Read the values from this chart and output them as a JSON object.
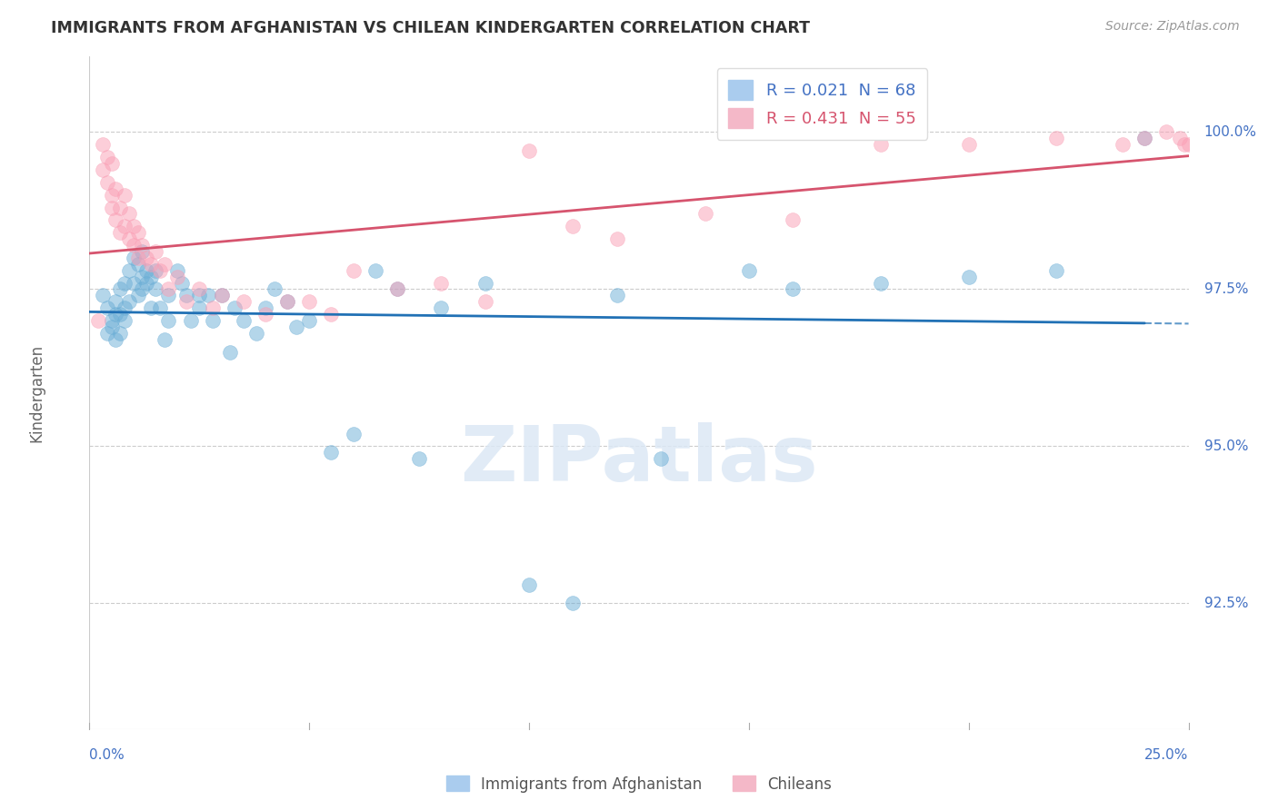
{
  "title": "IMMIGRANTS FROM AFGHANISTAN VS CHILEAN KINDERGARTEN CORRELATION CHART",
  "source": "Source: ZipAtlas.com",
  "ylabel": "Kindergarten",
  "yticks": [
    92.5,
    95.0,
    97.5,
    100.0
  ],
  "ytick_labels": [
    "92.5%",
    "95.0%",
    "97.5%",
    "100.0%"
  ],
  "xlim": [
    0.0,
    25.0
  ],
  "ylim": [
    90.5,
    101.2
  ],
  "legend1_label": "R = 0.021  N = 68",
  "legend2_label": "R = 0.431  N = 55",
  "blue_color": "#6baed6",
  "pink_color": "#fa9fb5",
  "blue_line_color": "#2171b5",
  "pink_line_color": "#d6546e",
  "text_color": "#4472c4",
  "watermark_text": "ZIPatlas",
  "blue_scatter_x": [
    0.3,
    0.4,
    0.4,
    0.5,
    0.5,
    0.6,
    0.6,
    0.6,
    0.7,
    0.7,
    0.7,
    0.8,
    0.8,
    0.8,
    0.9,
    0.9,
    1.0,
    1.0,
    1.1,
    1.1,
    1.2,
    1.2,
    1.2,
    1.3,
    1.3,
    1.4,
    1.4,
    1.5,
    1.5,
    1.6,
    1.7,
    1.8,
    1.8,
    2.0,
    2.1,
    2.2,
    2.3,
    2.5,
    2.5,
    2.7,
    2.8,
    3.0,
    3.2,
    3.3,
    3.5,
    3.8,
    4.0,
    4.2,
    4.5,
    4.7,
    5.0,
    5.5,
    6.0,
    6.5,
    7.0,
    7.5,
    8.0,
    9.0,
    10.0,
    11.0,
    12.0,
    13.0,
    15.0,
    16.0,
    18.0,
    20.0,
    22.0,
    24.0
  ],
  "blue_scatter_y": [
    97.4,
    96.8,
    97.2,
    97.0,
    96.9,
    97.1,
    97.3,
    96.7,
    97.5,
    97.1,
    96.8,
    97.6,
    97.2,
    97.0,
    97.8,
    97.3,
    98.0,
    97.6,
    97.9,
    97.4,
    98.1,
    97.7,
    97.5,
    97.6,
    97.8,
    97.7,
    97.2,
    97.8,
    97.5,
    97.2,
    96.7,
    97.4,
    97.0,
    97.8,
    97.6,
    97.4,
    97.0,
    97.4,
    97.2,
    97.4,
    97.0,
    97.4,
    96.5,
    97.2,
    97.0,
    96.8,
    97.2,
    97.5,
    97.3,
    96.9,
    97.0,
    94.9,
    95.2,
    97.8,
    97.5,
    94.8,
    97.2,
    97.6,
    92.8,
    92.5,
    97.4,
    94.8,
    97.8,
    97.5,
    97.6,
    97.7,
    97.8,
    99.9
  ],
  "pink_scatter_x": [
    0.2,
    0.3,
    0.3,
    0.4,
    0.4,
    0.5,
    0.5,
    0.5,
    0.6,
    0.6,
    0.7,
    0.7,
    0.8,
    0.8,
    0.9,
    0.9,
    1.0,
    1.0,
    1.1,
    1.1,
    1.2,
    1.3,
    1.4,
    1.5,
    1.6,
    1.7,
    1.8,
    2.0,
    2.2,
    2.5,
    2.8,
    3.0,
    3.5,
    4.0,
    4.5,
    5.0,
    5.5,
    6.0,
    7.0,
    8.0,
    9.0,
    10.0,
    11.0,
    12.0,
    14.0,
    16.0,
    18.0,
    20.0,
    22.0,
    23.5,
    24.0,
    24.5,
    24.8,
    24.9,
    25.0
  ],
  "pink_scatter_y": [
    97.0,
    99.8,
    99.4,
    99.6,
    99.2,
    99.0,
    98.8,
    99.5,
    98.6,
    99.1,
    98.4,
    98.8,
    98.5,
    99.0,
    98.3,
    98.7,
    98.2,
    98.5,
    98.0,
    98.4,
    98.2,
    98.0,
    97.9,
    98.1,
    97.8,
    97.9,
    97.5,
    97.7,
    97.3,
    97.5,
    97.2,
    97.4,
    97.3,
    97.1,
    97.3,
    97.3,
    97.1,
    97.8,
    97.5,
    97.6,
    97.3,
    99.7,
    98.5,
    98.3,
    98.7,
    98.6,
    99.8,
    99.8,
    99.9,
    99.8,
    99.9,
    100.0,
    99.9,
    99.8,
    99.8
  ]
}
